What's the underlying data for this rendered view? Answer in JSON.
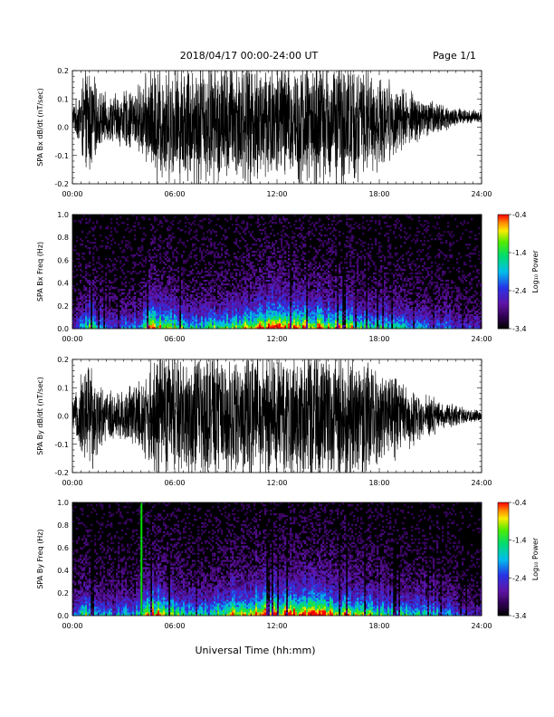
{
  "header": {
    "date_range": "2018/04/17  00:00-24:00 UT",
    "page": "Page 1/1"
  },
  "footer": {
    "xlabel": "Universal Time (hh:mm)"
  },
  "x_tick_labels": [
    "00:00",
    "06:00",
    "12:00",
    "18:00",
    "24:00"
  ],
  "chart_data": [
    {
      "type": "line",
      "id": "bx-dbdt",
      "title": "",
      "ylabel": "SPA Bx dB/dt (nT/sec)",
      "xlabel": "",
      "x_range": [
        "00:00",
        "24:00"
      ],
      "xlim_hours": [
        0,
        24
      ],
      "ylim": [
        -0.2,
        0.2
      ],
      "y_ticks": [
        -0.2,
        -0.1,
        0.0,
        0.1,
        0.2
      ],
      "y_tick_labels": [
        "-0.2",
        "-0.1",
        "0.0",
        "0.1",
        "0.2"
      ],
      "color": "#000000",
      "envelope": {
        "hours": [
          0,
          0.3,
          0.5,
          0.8,
          1,
          1.2,
          1.5,
          2,
          2.5,
          3,
          3.5,
          4,
          4.5,
          5,
          6,
          7,
          8,
          9,
          10,
          11,
          12,
          13,
          14,
          15,
          16,
          17,
          18,
          19,
          20,
          21,
          22,
          23,
          24
        ],
        "amplitude": [
          0.05,
          0.08,
          0.15,
          0.2,
          0.22,
          0.18,
          0.12,
          0.09,
          0.1,
          0.11,
          0.12,
          0.14,
          0.2,
          0.24,
          0.22,
          0.25,
          0.25,
          0.25,
          0.25,
          0.25,
          0.25,
          0.25,
          0.25,
          0.25,
          0.25,
          0.22,
          0.18,
          0.14,
          0.1,
          0.07,
          0.05,
          0.03,
          0.02
        ]
      },
      "baseline": 0.04
    },
    {
      "type": "heatmap",
      "id": "bx-freq",
      "title": "",
      "ylabel": "SPA Bx Freq (Hz)",
      "xlabel": "",
      "x_range": [
        "00:00",
        "24:00"
      ],
      "xlim_hours": [
        0,
        24
      ],
      "ylim": [
        0,
        1.0
      ],
      "y_ticks": [
        0.0,
        0.2,
        0.4,
        0.6,
        0.8,
        1.0
      ],
      "y_tick_labels": [
        "0.0",
        "0.2",
        "0.4",
        "0.6",
        "0.8",
        "1.0"
      ],
      "colorbar": {
        "label": "Log₁₀ Power",
        "range": [
          -3.4,
          -0.4
        ],
        "ticks": [
          -3.4,
          -2.4,
          -1.4,
          -0.4
        ],
        "tick_labels": [
          "-3.4",
          "-2.4",
          "-1.4",
          "-0.4"
        ]
      },
      "activity": {
        "hours": [
          0,
          1,
          1.5,
          2,
          3,
          4,
          4.6,
          5,
          6,
          7,
          8,
          9,
          10,
          11,
          12,
          13,
          14,
          15,
          16,
          17,
          18,
          19,
          20,
          21,
          22,
          23,
          24
        ],
        "intensity": [
          0.2,
          0.6,
          0.45,
          0.3,
          0.35,
          0.4,
          0.75,
          0.8,
          0.6,
          0.45,
          0.55,
          0.6,
          0.7,
          0.8,
          0.85,
          0.85,
          0.8,
          0.75,
          0.7,
          0.6,
          0.5,
          0.45,
          0.45,
          0.4,
          0.35,
          0.25,
          0.2
        ]
      },
      "vertical_lines_hours": []
    },
    {
      "type": "line",
      "id": "by-dbdt",
      "title": "",
      "ylabel": "SPA By dB/dt (nT/sec)",
      "xlabel": "",
      "x_range": [
        "00:00",
        "24:00"
      ],
      "xlim_hours": [
        0,
        24
      ],
      "ylim": [
        -0.2,
        0.2
      ],
      "y_ticks": [
        -0.2,
        -0.1,
        0.0,
        0.1,
        0.2
      ],
      "y_tick_labels": [
        "-0.2",
        "-0.1",
        "0.0",
        "0.1",
        "0.2"
      ],
      "color": "#000000",
      "envelope": {
        "hours": [
          0,
          0.3,
          0.5,
          0.8,
          1,
          1.2,
          1.5,
          2,
          2.5,
          3,
          3.5,
          4,
          4.5,
          5,
          6,
          7,
          8,
          9,
          10,
          11,
          12,
          13,
          14,
          15,
          16,
          17,
          18,
          19,
          20,
          21,
          22,
          23,
          24
        ],
        "amplitude": [
          0.06,
          0.1,
          0.17,
          0.22,
          0.24,
          0.2,
          0.14,
          0.1,
          0.1,
          0.11,
          0.13,
          0.15,
          0.2,
          0.25,
          0.24,
          0.25,
          0.25,
          0.25,
          0.25,
          0.25,
          0.25,
          0.25,
          0.25,
          0.25,
          0.25,
          0.23,
          0.2,
          0.16,
          0.12,
          0.08,
          0.05,
          0.03,
          0.02
        ]
      },
      "baseline": 0.0
    },
    {
      "type": "heatmap",
      "id": "by-freq",
      "title": "",
      "ylabel": "SPA By Freq (Hz)",
      "xlabel": "",
      "x_range": [
        "00:00",
        "24:00"
      ],
      "xlim_hours": [
        0,
        24
      ],
      "ylim": [
        0,
        1.0
      ],
      "y_ticks": [
        0.0,
        0.2,
        0.4,
        0.6,
        0.8,
        1.0
      ],
      "y_tick_labels": [
        "0.0",
        "0.2",
        "0.4",
        "0.6",
        "0.8",
        "1.0"
      ],
      "colorbar": {
        "label": "Log₁₀ Power",
        "range": [
          -3.4,
          -0.4
        ],
        "ticks": [
          -3.4,
          -2.4,
          -1.4,
          -0.4
        ],
        "tick_labels": [
          "-3.4",
          "-2.4",
          "-1.4",
          "-0.4"
        ]
      },
      "activity": {
        "hours": [
          0,
          1,
          1.5,
          2,
          3,
          4,
          4.6,
          5,
          6,
          7,
          8,
          9,
          10,
          11,
          12,
          13,
          14,
          15,
          16,
          17,
          18,
          19,
          20,
          21,
          22,
          23,
          24
        ],
        "intensity": [
          0.25,
          0.65,
          0.5,
          0.35,
          0.4,
          0.45,
          0.8,
          0.85,
          0.65,
          0.5,
          0.55,
          0.65,
          0.75,
          0.85,
          0.9,
          0.9,
          0.85,
          0.8,
          0.75,
          0.65,
          0.55,
          0.5,
          0.5,
          0.45,
          0.4,
          0.3,
          0.25
        ]
      },
      "vertical_lines_hours": [
        4.05
      ]
    }
  ]
}
